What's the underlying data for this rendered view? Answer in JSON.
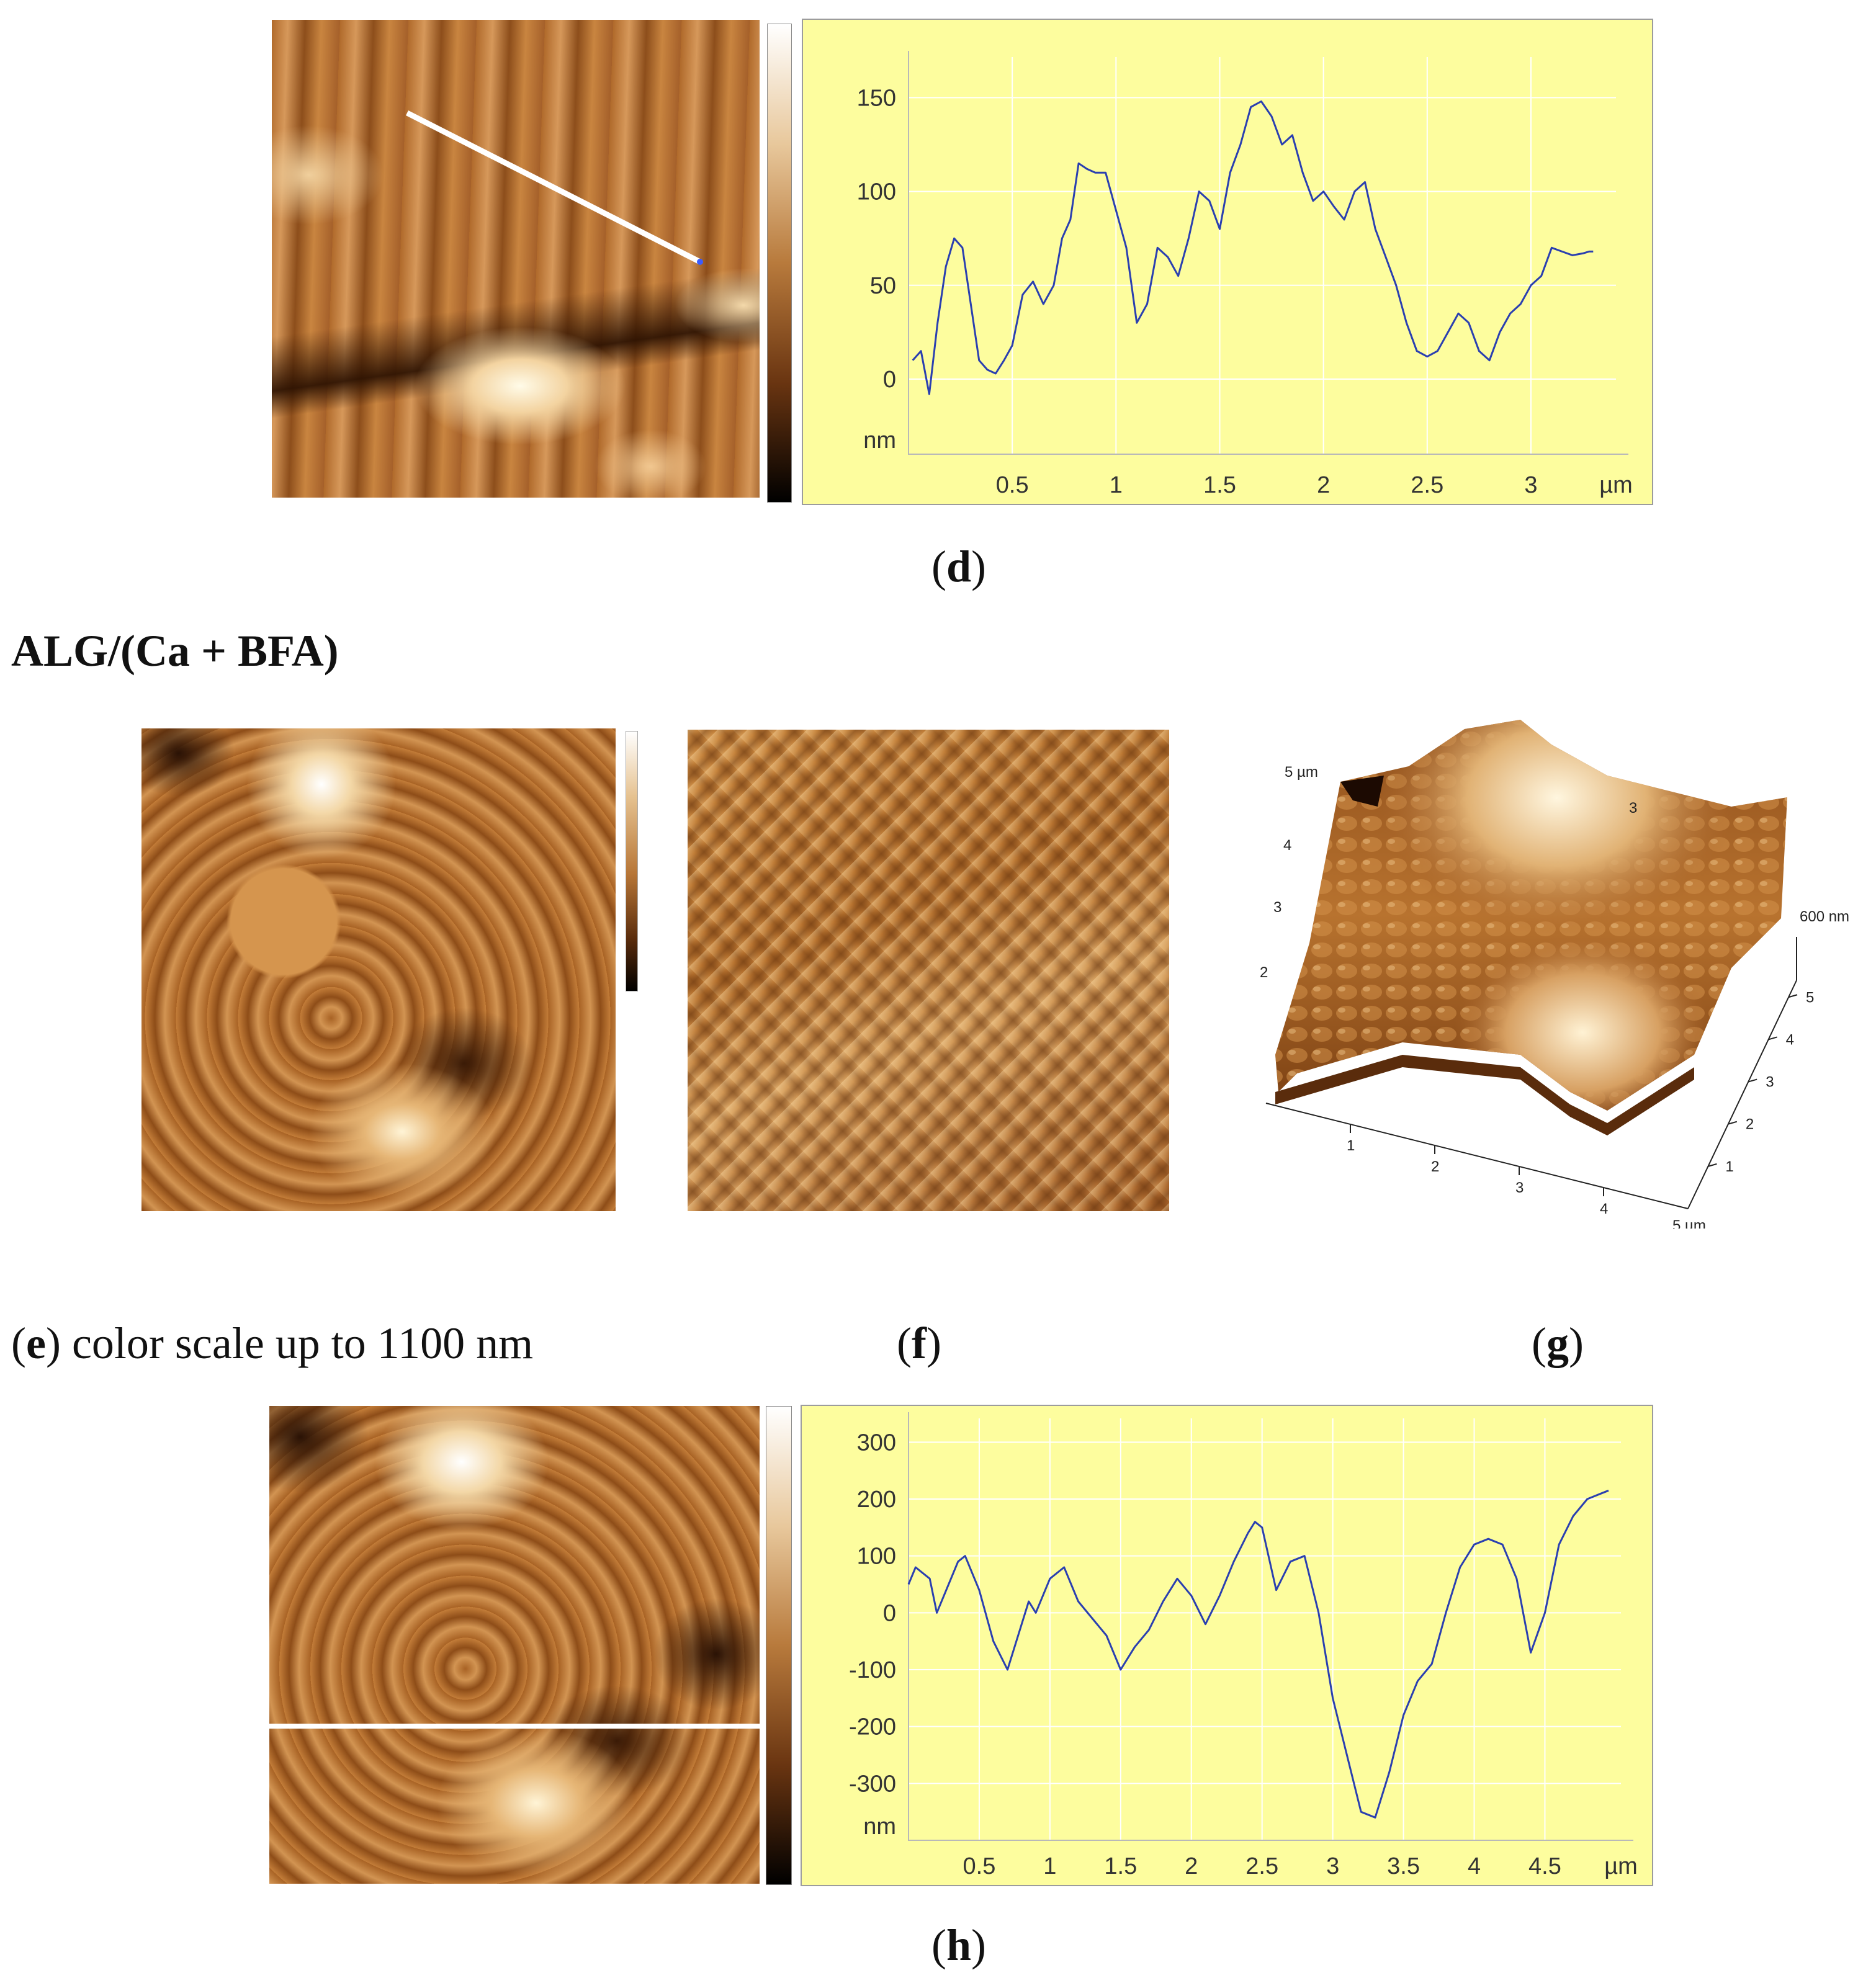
{
  "captions": {
    "d": "d",
    "e_letter": "e",
    "e_text": " color scale up to 1100 nm",
    "f": "f",
    "g": "g",
    "h": "h"
  },
  "section_title": "ALG/(Ca + BFA)",
  "colors": {
    "profile_background": "#fdfd9e",
    "profile_line": "#2a3fb0",
    "grid": "#ffffff"
  },
  "chart_data": [
    {
      "id": "profile-d",
      "type": "line",
      "x_unit": "µm",
      "y_unit": "nm",
      "x_ticks": [
        "0.5",
        "1",
        "1.5",
        "2",
        "2.5",
        "3"
      ],
      "y_ticks": [
        "150",
        "100",
        "50",
        "0"
      ],
      "xlim": [
        0,
        3.35
      ],
      "ylim": [
        -40,
        165
      ],
      "x": [
        0.02,
        0.06,
        0.1,
        0.14,
        0.18,
        0.22,
        0.26,
        0.3,
        0.34,
        0.38,
        0.42,
        0.46,
        0.5,
        0.55,
        0.6,
        0.65,
        0.7,
        0.74,
        0.78,
        0.82,
        0.86,
        0.9,
        0.95,
        1.0,
        1.05,
        1.1,
        1.15,
        1.2,
        1.25,
        1.3,
        1.35,
        1.4,
        1.45,
        1.5,
        1.55,
        1.6,
        1.65,
        1.7,
        1.75,
        1.8,
        1.85,
        1.9,
        1.95,
        2.0,
        2.05,
        2.1,
        2.15,
        2.2,
        2.25,
        2.3,
        2.35,
        2.4,
        2.45,
        2.5,
        2.55,
        2.6,
        2.65,
        2.7,
        2.75,
        2.8,
        2.85,
        2.9,
        2.95,
        3.0,
        3.05,
        3.1,
        3.15,
        3.2,
        3.25,
        3.28,
        3.3
      ],
      "y": [
        10,
        15,
        -8,
        30,
        60,
        75,
        70,
        40,
        10,
        5,
        3,
        10,
        18,
        45,
        52,
        40,
        50,
        75,
        85,
        115,
        112,
        110,
        110,
        90,
        70,
        30,
        40,
        70,
        65,
        55,
        75,
        100,
        95,
        80,
        110,
        125,
        145,
        148,
        140,
        125,
        130,
        110,
        95,
        100,
        92,
        85,
        100,
        105,
        80,
        65,
        50,
        30,
        15,
        12,
        15,
        25,
        35,
        30,
        15,
        10,
        25,
        35,
        40,
        50,
        55,
        70,
        68,
        66,
        67,
        68,
        68
      ]
    },
    {
      "id": "profile-h",
      "type": "line",
      "x_unit": "µm",
      "y_unit": "nm",
      "x_ticks": [
        "0.5",
        "1",
        "1.5",
        "2",
        "2.5",
        "3",
        "3.5",
        "4",
        "4.5"
      ],
      "y_ticks": [
        "300",
        "200",
        "100",
        "0",
        "-100",
        "-200",
        "-300"
      ],
      "xlim": [
        0,
        4.95
      ],
      "ylim": [
        -400,
        320
      ],
      "x": [
        0.0,
        0.05,
        0.1,
        0.15,
        0.2,
        0.25,
        0.3,
        0.35,
        0.4,
        0.5,
        0.6,
        0.7,
        0.8,
        0.85,
        0.9,
        1.0,
        1.1,
        1.2,
        1.3,
        1.4,
        1.5,
        1.6,
        1.7,
        1.8,
        1.9,
        2.0,
        2.1,
        2.2,
        2.3,
        2.4,
        2.45,
        2.5,
        2.6,
        2.7,
        2.8,
        2.9,
        3.0,
        3.1,
        3.2,
        3.3,
        3.4,
        3.5,
        3.6,
        3.7,
        3.8,
        3.9,
        4.0,
        4.1,
        4.2,
        4.3,
        4.4,
        4.5,
        4.6,
        4.7,
        4.8,
        4.9,
        4.95
      ],
      "y": [
        50,
        80,
        70,
        60,
        0,
        30,
        60,
        90,
        100,
        40,
        -50,
        -100,
        -20,
        20,
        0,
        60,
        80,
        20,
        -10,
        -40,
        -100,
        -60,
        -30,
        20,
        60,
        30,
        -20,
        30,
        90,
        140,
        160,
        150,
        40,
        90,
        100,
        0,
        -150,
        -250,
        -350,
        -360,
        -280,
        -180,
        -120,
        -90,
        0,
        80,
        120,
        130,
        120,
        60,
        -70,
        0,
        120,
        170,
        200,
        210,
        215
      ]
    }
  ],
  "surface3d": {
    "corner_label": "5 µm",
    "z_label": "600 nm",
    "x_ticks": [
      "1",
      "2",
      "3",
      "4"
    ],
    "x_end": "5 µm",
    "y_ticks": [
      "1",
      "2",
      "3",
      "4",
      "5"
    ],
    "left_ticks": [
      "2",
      "3",
      "4"
    ],
    "back_tick": "3"
  }
}
